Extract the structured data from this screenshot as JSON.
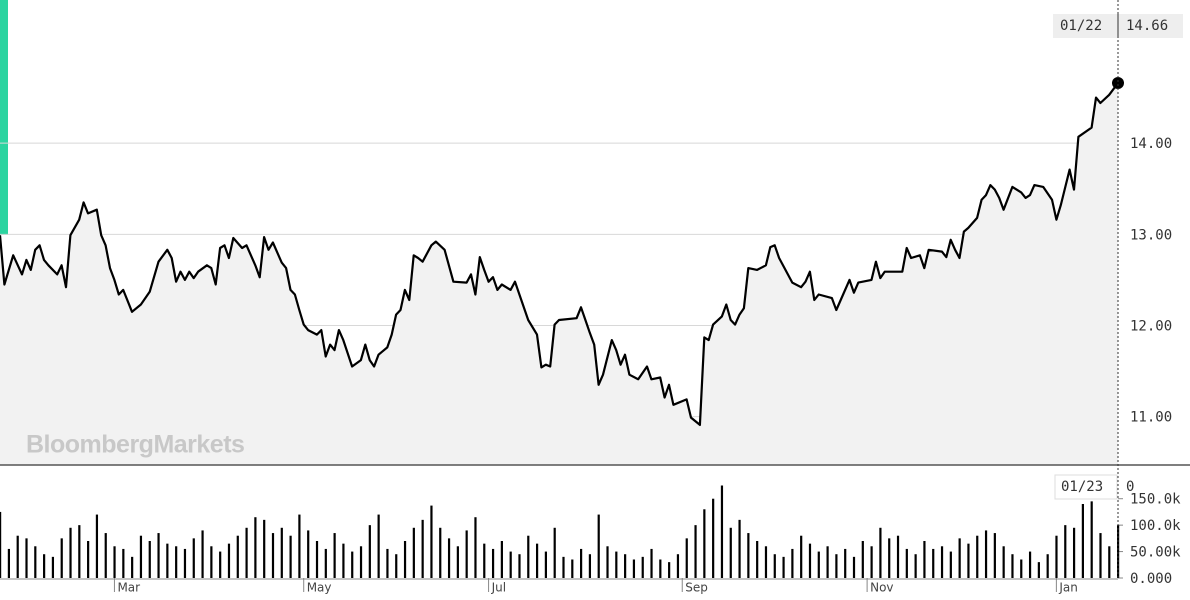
{
  "chart_data": [
    {
      "type": "line",
      "color": "#000000",
      "area_color": "#f2f2f2",
      "grid": true,
      "watermark": "BloombergMarkets",
      "last_date_label": "01/22",
      "xlim": [
        0,
        254
      ],
      "ylim": [
        10.47,
        15.57
      ],
      "yticks": [
        {
          "value": 11,
          "label": "11.00"
        },
        {
          "value": 12,
          "label": "12.00"
        },
        {
          "value": 13,
          "label": "13.00"
        },
        {
          "value": 14,
          "label": "14.00"
        }
      ],
      "x": [
        0,
        1,
        2,
        3,
        5,
        6,
        7,
        8,
        9,
        10,
        11,
        13,
        14,
        15,
        16,
        18,
        19,
        20,
        22,
        23,
        24,
        25,
        26,
        27,
        28,
        30,
        32,
        34,
        36,
        38,
        39,
        40,
        41,
        42,
        43,
        44,
        45,
        47,
        48,
        49,
        50,
        51,
        52,
        53,
        55,
        56,
        57,
        58,
        59,
        60,
        61,
        62,
        64,
        65,
        66,
        67,
        68,
        69,
        70,
        72,
        73,
        74,
        75,
        76,
        77,
        78,
        80,
        82,
        83,
        84,
        85,
        86,
        88,
        89,
        90,
        91,
        92,
        93,
        94,
        95,
        96,
        98,
        99,
        101,
        103,
        106,
        107,
        108,
        109,
        110,
        111,
        112,
        113,
        114,
        116,
        117,
        118,
        120,
        122,
        123,
        124,
        125,
        126,
        127,
        131,
        132,
        133,
        134,
        135,
        136,
        137,
        139,
        140,
        141,
        142,
        143,
        145,
        147,
        148,
        150,
        151,
        152,
        153,
        156,
        157,
        159,
        160,
        161,
        162,
        164,
        165,
        166,
        167,
        168,
        169,
        170,
        172,
        174,
        175,
        176,
        177,
        180,
        182,
        183,
        184,
        185,
        186,
        189,
        190,
        191,
        193,
        194,
        195,
        198,
        199,
        200,
        201,
        205,
        206,
        207,
        209,
        210,
        211,
        214,
        215,
        216,
        217,
        218,
        219,
        220,
        222,
        223,
        224,
        225,
        226,
        227,
        228,
        230,
        232,
        233,
        234,
        235,
        237,
        239,
        240,
        241,
        243,
        244,
        245,
        248,
        249,
        250,
        252,
        254
      ],
      "values": [
        12.99,
        12.45,
        12.61,
        12.77,
        12.56,
        12.72,
        12.61,
        12.83,
        12.88,
        12.72,
        12.66,
        12.56,
        12.66,
        12.42,
        12.99,
        13.16,
        13.35,
        13.23,
        13.27,
        12.99,
        12.88,
        12.63,
        12.5,
        12.34,
        12.39,
        12.15,
        12.23,
        12.37,
        12.7,
        12.83,
        12.74,
        12.48,
        12.59,
        12.5,
        12.59,
        12.52,
        12.59,
        12.66,
        12.63,
        12.45,
        12.85,
        12.88,
        12.74,
        12.96,
        12.85,
        12.88,
        12.77,
        12.66,
        12.53,
        12.97,
        12.83,
        12.91,
        12.69,
        12.63,
        12.39,
        12.34,
        12.17,
        12.01,
        11.95,
        11.9,
        11.95,
        11.66,
        11.79,
        11.73,
        11.95,
        11.84,
        11.55,
        11.62,
        11.79,
        11.62,
        11.55,
        11.68,
        11.76,
        11.9,
        12.12,
        12.17,
        12.39,
        12.28,
        12.77,
        12.74,
        12.7,
        12.88,
        12.92,
        12.83,
        12.48,
        12.47,
        12.56,
        12.34,
        12.75,
        12.61,
        12.48,
        12.53,
        12.39,
        12.45,
        12.39,
        12.48,
        12.34,
        12.06,
        11.9,
        11.54,
        11.57,
        11.55,
        12.01,
        12.06,
        12.08,
        12.2,
        12.06,
        11.92,
        11.79,
        11.35,
        11.46,
        11.84,
        11.73,
        11.57,
        11.68,
        11.46,
        11.41,
        11.55,
        11.41,
        11.43,
        11.21,
        11.35,
        11.13,
        11.19,
        10.99,
        10.91,
        11.87,
        11.84,
        12.01,
        12.1,
        12.23,
        12.06,
        12.01,
        12.12,
        12.19,
        12.63,
        12.61,
        12.66,
        12.86,
        12.88,
        12.74,
        12.47,
        12.42,
        12.48,
        12.59,
        12.28,
        12.34,
        12.3,
        12.17,
        12.28,
        12.5,
        12.36,
        12.47,
        12.5,
        12.7,
        12.52,
        12.59,
        12.59,
        12.85,
        12.74,
        12.77,
        12.63,
        12.83,
        12.81,
        12.75,
        12.94,
        12.83,
        12.74,
        13.03,
        13.07,
        13.18,
        13.38,
        13.43,
        13.54,
        13.49,
        13.4,
        13.27,
        13.52,
        13.46,
        13.4,
        13.43,
        13.54,
        13.52,
        13.38,
        13.16,
        13.32,
        13.71,
        13.49,
        14.07,
        14.17,
        14.5,
        14.44,
        14.53,
        14.66
      ]
    },
    {
      "type": "bar",
      "color": "#000000",
      "last_date_label": "01/23",
      "last_value": 0,
      "xlim": [
        0,
        254
      ],
      "ylim": [
        0,
        210000
      ],
      "yticks": [
        {
          "value": 0,
          "label": "0.000"
        },
        {
          "value": 50000,
          "label": "50.00k"
        },
        {
          "value": 100000,
          "label": "100.0k"
        },
        {
          "value": 150000,
          "label": "150.0k"
        }
      ],
      "xticks": [
        {
          "value": 26,
          "label": "Mar"
        },
        {
          "value": 69,
          "label": "May"
        },
        {
          "value": 111,
          "label": "Jul"
        },
        {
          "value": 155,
          "label": "Sep"
        },
        {
          "value": 197,
          "label": "Nov"
        },
        {
          "value": 240,
          "label": "Jan"
        }
      ],
      "x": [
        0,
        2,
        4,
        6,
        8,
        10,
        12,
        14,
        16,
        18,
        20,
        22,
        24,
        26,
        28,
        30,
        32,
        34,
        36,
        38,
        40,
        42,
        44,
        46,
        48,
        50,
        52,
        54,
        56,
        58,
        60,
        62,
        64,
        66,
        68,
        70,
        72,
        74,
        76,
        78,
        80,
        82,
        84,
        86,
        88,
        90,
        92,
        94,
        96,
        98,
        100,
        102,
        104,
        106,
        108,
        110,
        112,
        114,
        116,
        118,
        120,
        122,
        124,
        126,
        128,
        130,
        132,
        134,
        136,
        138,
        140,
        142,
        144,
        146,
        148,
        150,
        152,
        154,
        156,
        158,
        160,
        162,
        164,
        166,
        168,
        170,
        172,
        174,
        176,
        178,
        180,
        182,
        184,
        186,
        188,
        190,
        192,
        194,
        196,
        198,
        200,
        202,
        204,
        206,
        208,
        210,
        212,
        214,
        216,
        218,
        220,
        222,
        224,
        226,
        228,
        230,
        232,
        234,
        236,
        238,
        240,
        242,
        244,
        246,
        248,
        250,
        252,
        254
      ],
      "values": [
        125000,
        55000,
        80000,
        75000,
        60000,
        45000,
        40000,
        75000,
        95000,
        100000,
        70000,
        120000,
        85000,
        60000,
        55000,
        40000,
        80000,
        70000,
        85000,
        65000,
        60000,
        55000,
        75000,
        90000,
        60000,
        50000,
        65000,
        80000,
        95000,
        115000,
        110000,
        85000,
        95000,
        80000,
        120000,
        90000,
        70000,
        55000,
        85000,
        65000,
        50000,
        60000,
        100000,
        120000,
        55000,
        45000,
        70000,
        95000,
        110000,
        137000,
        95000,
        75000,
        60000,
        90000,
        115000,
        65000,
        55000,
        70000,
        50000,
        45000,
        80000,
        65000,
        50000,
        95000,
        40000,
        35000,
        55000,
        45000,
        120000,
        60000,
        50000,
        45000,
        35000,
        40000,
        55000,
        35000,
        30000,
        45000,
        75000,
        100000,
        130000,
        150000,
        175000,
        95000,
        110000,
        85000,
        70000,
        60000,
        45000,
        40000,
        55000,
        80000,
        65000,
        50000,
        60000,
        45000,
        55000,
        40000,
        70000,
        60000,
        95000,
        75000,
        80000,
        55000,
        45000,
        70000,
        55000,
        60000,
        50000,
        75000,
        65000,
        80000,
        90000,
        85000,
        60000,
        45000,
        35000,
        50000,
        30000,
        45000,
        80000,
        100000,
        95000,
        140000,
        145000,
        85000,
        60000,
        100000
      ]
    }
  ]
}
